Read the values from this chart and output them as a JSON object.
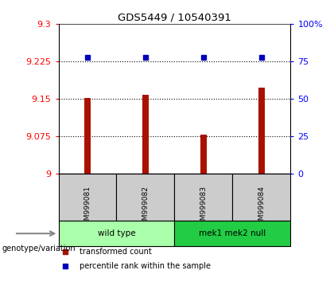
{
  "title": "GDS5449 / 10540391",
  "samples": [
    "GSM999081",
    "GSM999082",
    "GSM999083",
    "GSM999084"
  ],
  "bar_values": [
    9.152,
    9.158,
    9.079,
    9.172
  ],
  "percentile_values": [
    77.5,
    77.5,
    77.5,
    77.5
  ],
  "ylim_left": [
    9.0,
    9.3
  ],
  "ylim_right": [
    0,
    100
  ],
  "yticks_left": [
    9.0,
    9.075,
    9.15,
    9.225,
    9.3
  ],
  "yticks_right": [
    0,
    25,
    50,
    75,
    100
  ],
  "ytick_labels_left": [
    "9",
    "9.075",
    "9.15",
    "9.225",
    "9.3"
  ],
  "ytick_labels_right": [
    "0",
    "25",
    "50",
    "75",
    "100%"
  ],
  "hlines": [
    9.075,
    9.15,
    9.225
  ],
  "bar_color": "#aa1100",
  "dot_color": "#0000bb",
  "groups": [
    {
      "label": "wild type",
      "samples": [
        0,
        1
      ],
      "color": "#aaffaa"
    },
    {
      "label": "mek1 mek2 null",
      "samples": [
        2,
        3
      ],
      "color": "#22cc44"
    }
  ],
  "sample_box_color": "#cccccc",
  "legend_bar_label": "transformed count",
  "legend_dot_label": "percentile rank within the sample",
  "genotype_label": "genotype/variation",
  "bar_width": 0.12
}
